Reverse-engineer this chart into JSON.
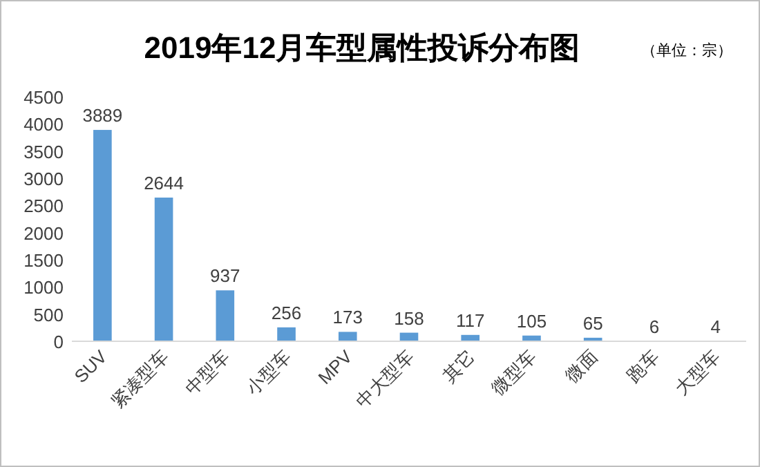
{
  "chart_data": {
    "type": "bar",
    "title": "2019年12月车型属性投诉分布图",
    "subtitle": "（单位：宗）",
    "categories": [
      "SUV",
      "紧凑型车",
      "中型车",
      "小型车",
      "MPV",
      "中大型车",
      "其它",
      "微型车",
      "微面",
      "跑车",
      "大型车"
    ],
    "values": [
      3889,
      2644,
      937,
      256,
      173,
      158,
      117,
      105,
      65,
      6,
      4
    ],
    "color": "#5b9bd5",
    "ylim": [
      0,
      4500
    ],
    "yticks": [
      0,
      500,
      1000,
      1500,
      2000,
      2500,
      3000,
      3500,
      4000,
      4500
    ],
    "data_labels": true
  }
}
